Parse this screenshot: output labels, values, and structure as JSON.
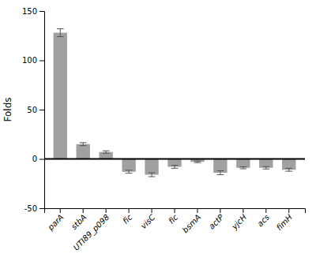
{
  "chart_data": {
    "type": "bar",
    "ylabel": "Folds",
    "categories": [
      "parA",
      "stbA",
      "UTI89_p098",
      "fic",
      "visC",
      "fic",
      "bsmA",
      "actP",
      "yjcH",
      "acs",
      "fimH"
    ],
    "values": [
      128,
      15,
      7,
      -13,
      -16,
      -8,
      -3,
      -14,
      -9,
      -9,
      -11
    ],
    "errors": [
      4,
      1.5,
      1.2,
      1.5,
      2.0,
      1.5,
      0.8,
      2.0,
      1.0,
      1.2,
      1.5
    ],
    "color": "#a0a0a0",
    "ylim": [
      -50,
      150
    ],
    "yticks": [
      -50,
      0,
      50,
      100,
      150
    ],
    "grid": false
  }
}
